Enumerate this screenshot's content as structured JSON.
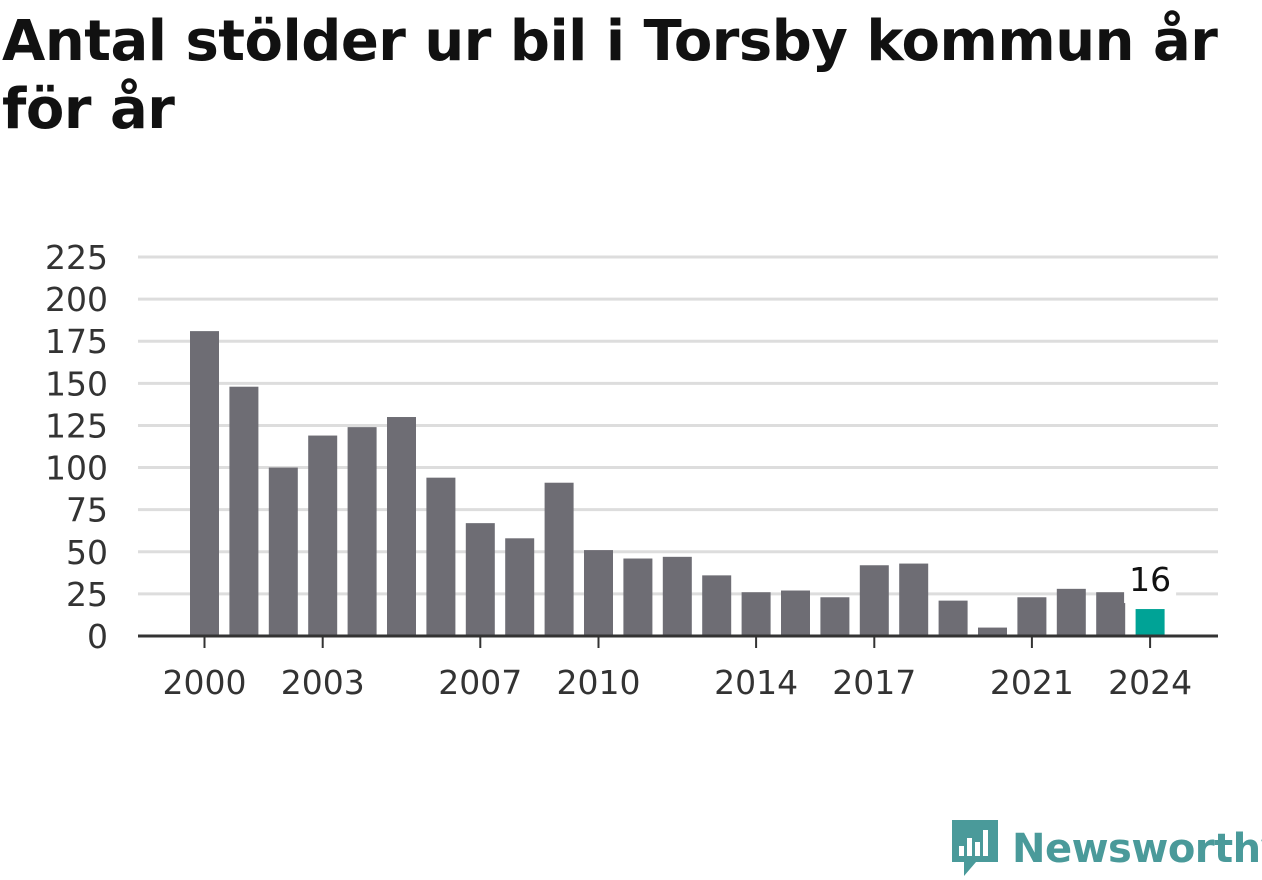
{
  "title": "Antal stölder ur bil i Torsby kommun år för år",
  "brand": {
    "name": "Newsworthy",
    "color": "#4a9a9a",
    "icon": "bar-chart-logo-icon"
  },
  "chart_data": {
    "type": "bar",
    "title": "Antal stölder ur bil i Torsby kommun år för år",
    "xlabel": "",
    "ylabel": "",
    "categories": [
      "2000",
      "2001",
      "2002",
      "2003",
      "2004",
      "2005",
      "2006",
      "2007",
      "2008",
      "2009",
      "2010",
      "2011",
      "2012",
      "2013",
      "2014",
      "2015",
      "2016",
      "2017",
      "2018",
      "2019",
      "2020",
      "2021",
      "2022",
      "2023",
      "2024"
    ],
    "values": [
      181,
      148,
      100,
      119,
      124,
      130,
      94,
      67,
      58,
      91,
      51,
      46,
      47,
      36,
      26,
      27,
      23,
      42,
      43,
      21,
      5,
      23,
      28,
      26,
      16
    ],
    "ylim": [
      0,
      225
    ],
    "yticks": [
      0,
      25,
      50,
      75,
      100,
      125,
      150,
      175,
      200,
      225
    ],
    "xtick_labels": [
      "2000",
      "2003",
      "2007",
      "2010",
      "2014",
      "2017",
      "2021",
      "2024"
    ],
    "highlight": {
      "category": "2024",
      "label": "16"
    },
    "grid": true,
    "colors": {
      "bar": "#6e6d74",
      "highlight": "#00a396",
      "grid": "#dddddd",
      "axis": "#333333"
    }
  }
}
